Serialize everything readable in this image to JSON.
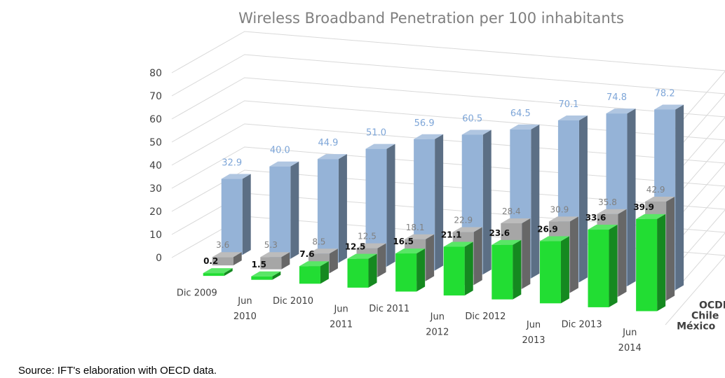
{
  "chart_data": {
    "type": "bar",
    "style": "3d-clustered-depth",
    "title": "Wireless Broadband Penetration per 100 inhabitants",
    "categories": [
      "Dic 2009",
      "Jun 2010",
      "Dic 2010",
      "Jun 2011",
      "Dic 2011",
      "Jun 2012",
      "Dic 2012",
      "Jun 2013",
      "Dic 2013",
      "Jun 2014"
    ],
    "ylim": [
      0,
      80
    ],
    "yticks": [
      "0",
      "10",
      "20",
      "30",
      "40",
      "50",
      "60",
      "70",
      "80"
    ],
    "grid": true,
    "series": [
      {
        "name": "OCDE",
        "color": "#95b3d7",
        "values": [
          32.9,
          40.0,
          44.9,
          51.0,
          56.9,
          60.5,
          64.5,
          70.1,
          74.8,
          78.2
        ],
        "labels": [
          "32.9",
          "40.0",
          "44.9",
          "51.0",
          "56.9",
          "60.5",
          "64.5",
          "70.1",
          "74.8",
          "78.2"
        ]
      },
      {
        "name": "Chile",
        "color": "#a6a6a6",
        "values": [
          3.6,
          5.3,
          8.5,
          12.5,
          18.1,
          22.9,
          28.4,
          30.9,
          35.8,
          42.9
        ],
        "labels": [
          "3.6",
          "5.3",
          "8.5",
          "12.5",
          "18.1",
          "22.9",
          "28.4",
          "30.9",
          "35.8",
          "42.9"
        ]
      },
      {
        "name": "México",
        "color": "#22dd33",
        "values": [
          0.2,
          1.5,
          7.6,
          12.5,
          16.5,
          21.1,
          23.6,
          26.9,
          33.6,
          39.9
        ],
        "labels": [
          "0.2",
          "1.5",
          "7.6",
          "12.5",
          "16.5",
          "21.1",
          "23.6",
          "26.9",
          "33.6",
          "39.9"
        ]
      }
    ],
    "legend": [
      "OCDE",
      "Chile",
      "México"
    ]
  },
  "source": "Source: IFT's elaboration with OECD data."
}
